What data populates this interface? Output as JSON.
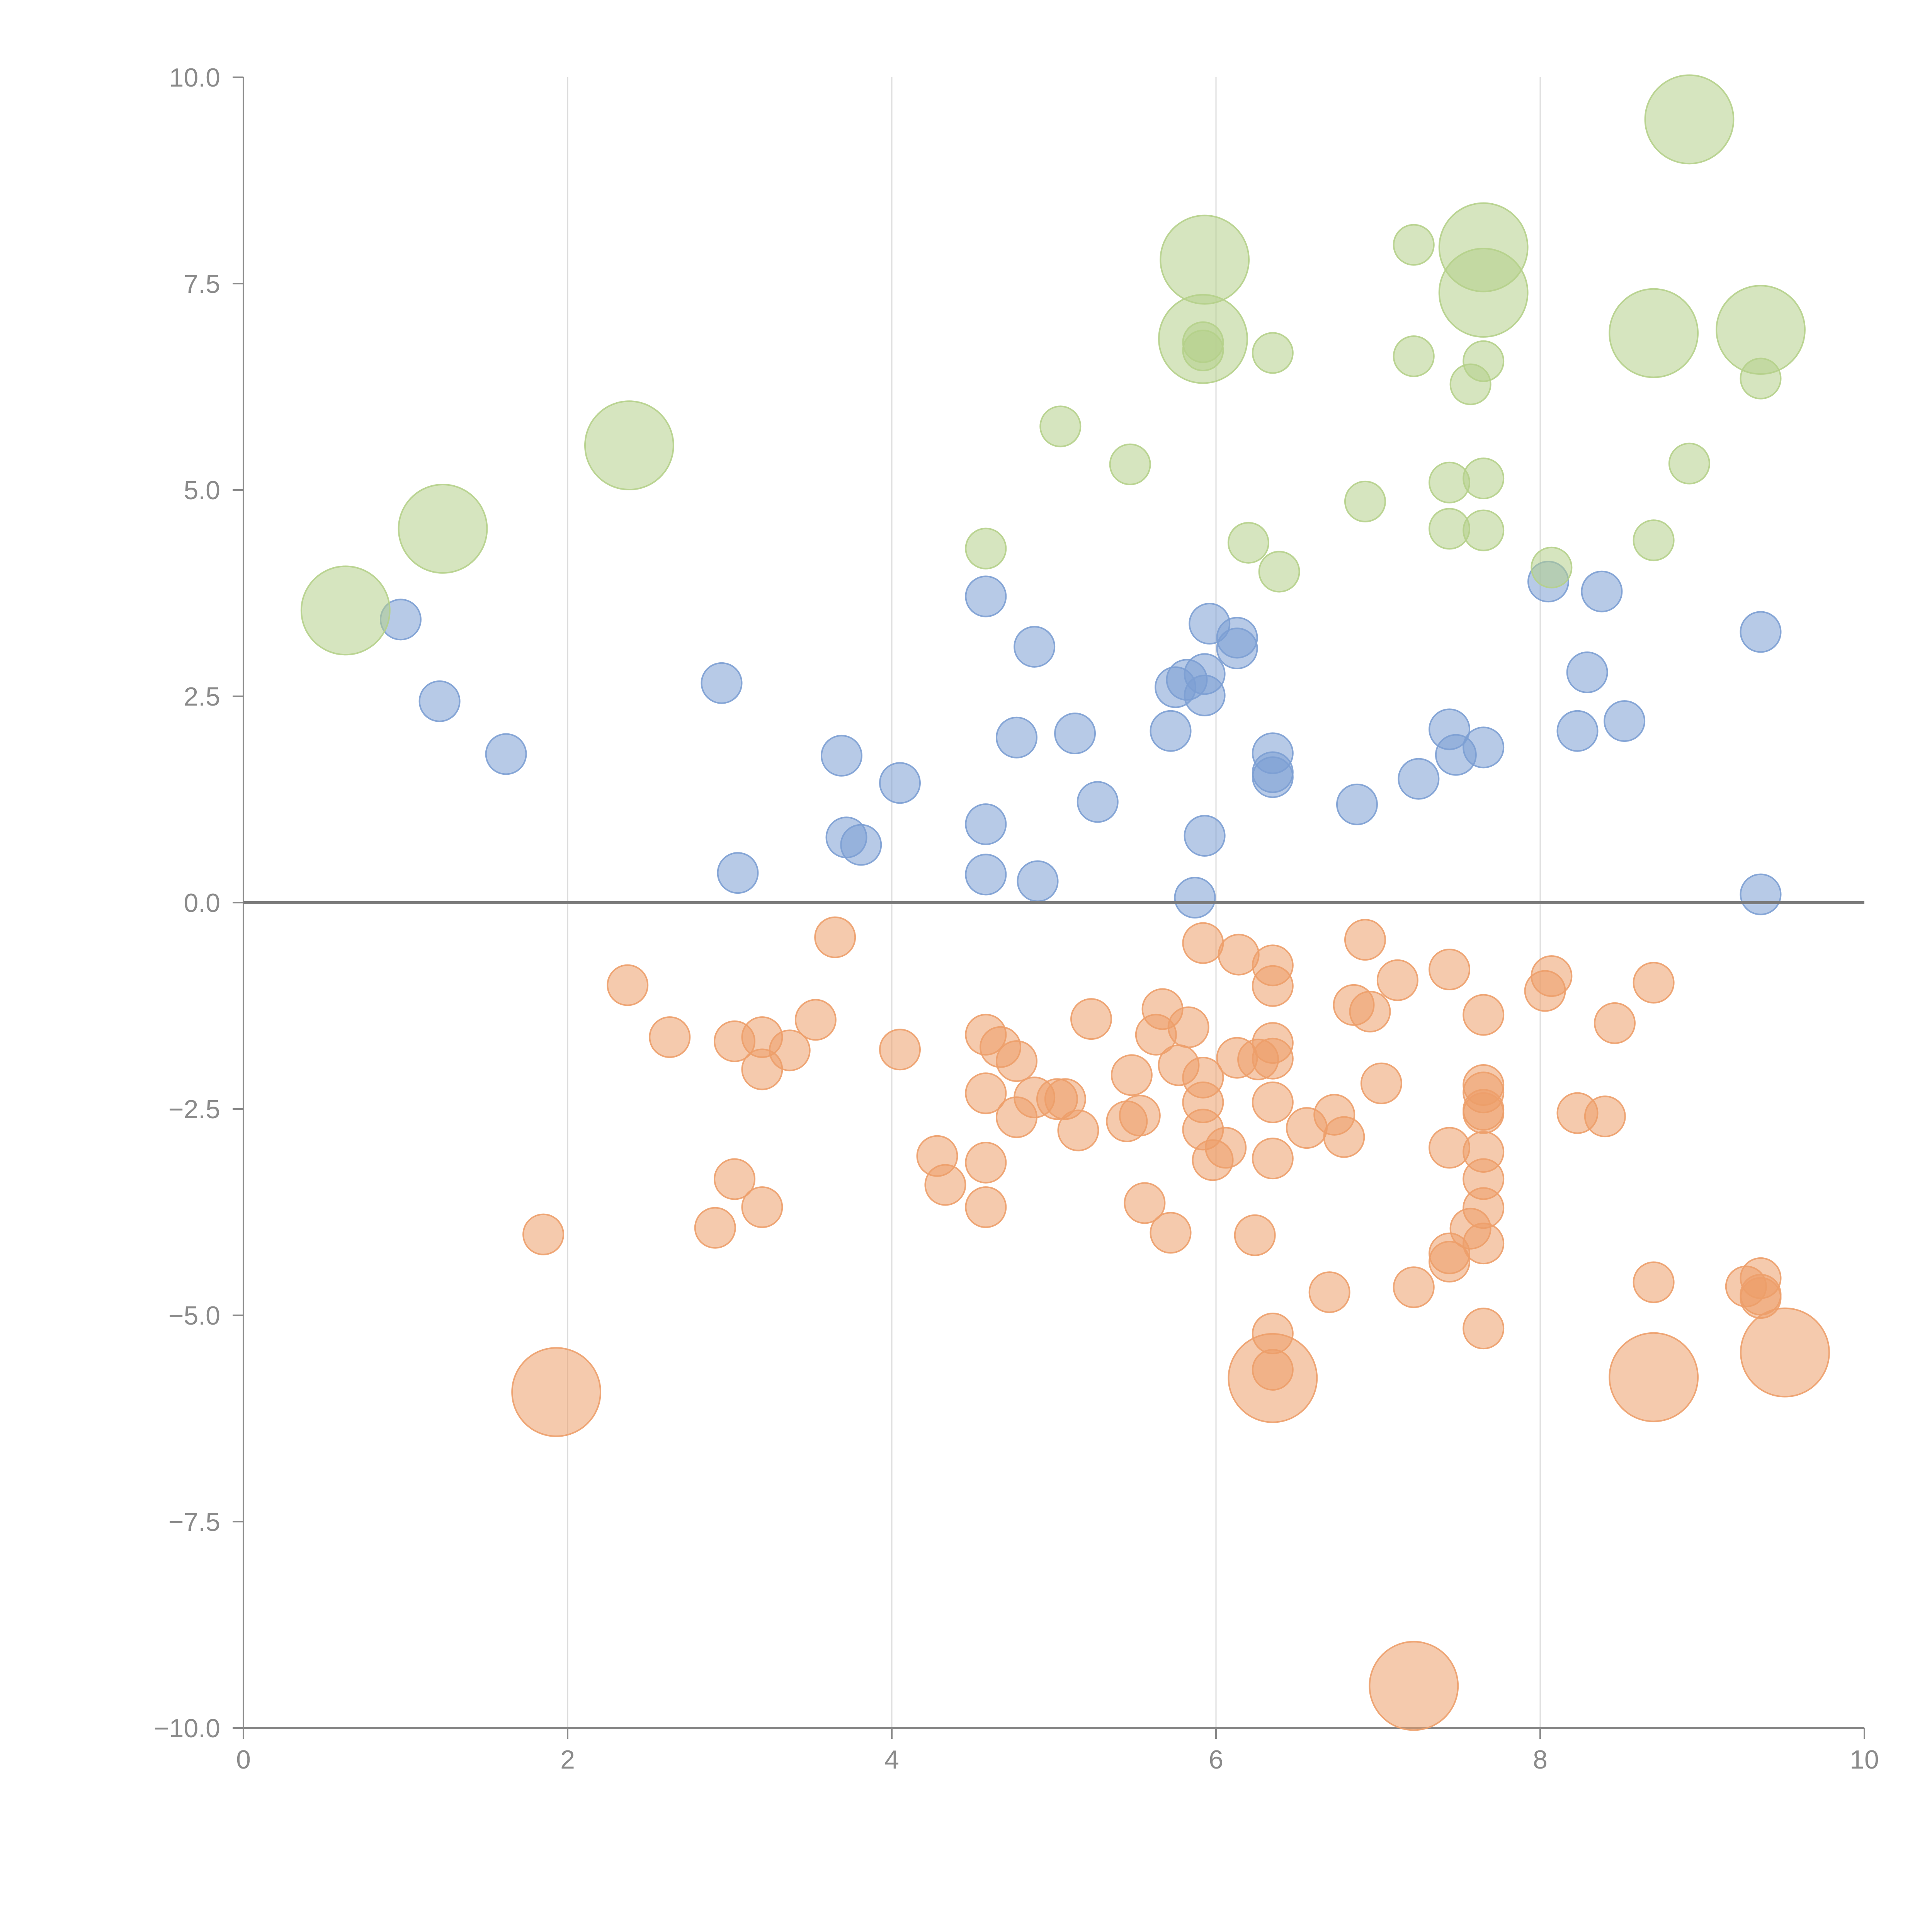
{
  "chart_data": {
    "type": "scatter",
    "title": "",
    "xlabel": "",
    "ylabel": "",
    "xlim": [
      0,
      10
    ],
    "ylim": [
      -10,
      10
    ],
    "x_ticks": [
      0,
      2,
      4,
      6,
      8,
      10
    ],
    "x_tick_labels": [
      "0",
      "2",
      "4",
      "6",
      "8",
      "10"
    ],
    "y_ticks": [
      -10,
      -7.5,
      -5,
      -2.5,
      0,
      2.5,
      5,
      7.5,
      10
    ],
    "y_tick_labels": [
      "−10.0",
      "−7.5",
      "−5.0",
      "−2.5",
      "0.0",
      "2.5",
      "5.0",
      "7.5",
      "10.0"
    ],
    "x_grid": true,
    "y_grid": false,
    "zero_line": true,
    "legend": "none",
    "series": [
      {
        "name": "blue",
        "color": "#7c9fd3",
        "points": [
          [
            0.97,
            3.43,
            1
          ],
          [
            1.21,
            2.44,
            1
          ],
          [
            1.62,
            1.8,
            1
          ],
          [
            2.95,
            2.66,
            1
          ],
          [
            3.05,
            0.36,
            1
          ],
          [
            3.69,
            1.78,
            1
          ],
          [
            3.72,
            0.79,
            1
          ],
          [
            3.81,
            0.7,
            1
          ],
          [
            4.05,
            1.45,
            1
          ],
          [
            4.58,
            3.71,
            1
          ],
          [
            4.58,
            0.95,
            1
          ],
          [
            4.58,
            0.34,
            1
          ],
          [
            4.77,
            2.0,
            1
          ],
          [
            4.88,
            3.1,
            1
          ],
          [
            4.9,
            0.26,
            1
          ],
          [
            5.13,
            2.05,
            1
          ],
          [
            5.27,
            1.22,
            1
          ],
          [
            5.72,
            2.08,
            1
          ],
          [
            5.75,
            2.61,
            1
          ],
          [
            5.82,
            2.7,
            1
          ],
          [
            5.87,
            0.06,
            1
          ],
          [
            5.93,
            2.77,
            1
          ],
          [
            5.93,
            2.51,
            1
          ],
          [
            5.93,
            0.81,
            1
          ],
          [
            5.96,
            3.38,
            1
          ],
          [
            6.13,
            3.21,
            1
          ],
          [
            6.13,
            3.08,
            1
          ],
          [
            6.35,
            1.81,
            1
          ],
          [
            6.35,
            1.58,
            1
          ],
          [
            6.35,
            1.52,
            1
          ],
          [
            6.87,
            1.19,
            1
          ],
          [
            7.25,
            1.5,
            1
          ],
          [
            7.44,
            2.1,
            1
          ],
          [
            7.48,
            1.79,
            1
          ],
          [
            7.65,
            1.88,
            1
          ],
          [
            8.05,
            3.89,
            1
          ],
          [
            8.23,
            2.08,
            1
          ],
          [
            8.29,
            2.79,
            1
          ],
          [
            8.38,
            3.77,
            1
          ],
          [
            8.52,
            2.2,
            1
          ],
          [
            9.36,
            3.28,
            1
          ],
          [
            9.36,
            0.1,
            1
          ]
        ]
      },
      {
        "name": "orange",
        "color": "#ed9f6a",
        "points": [
          [
            1.85,
            -4.02,
            1
          ],
          [
            1.93,
            -5.93,
            2.2
          ],
          [
            2.37,
            -1.0,
            1
          ],
          [
            2.63,
            -1.63,
            1
          ],
          [
            2.91,
            -3.94,
            1
          ],
          [
            3.03,
            -1.68,
            1
          ],
          [
            3.03,
            -3.35,
            1
          ],
          [
            3.2,
            -1.63,
            1
          ],
          [
            3.2,
            -2.02,
            1
          ],
          [
            3.2,
            -3.69,
            1
          ],
          [
            3.37,
            -1.79,
            1
          ],
          [
            3.53,
            -1.42,
            1
          ],
          [
            3.65,
            -0.42,
            1
          ],
          [
            4.05,
            -1.78,
            1
          ],
          [
            4.28,
            -3.07,
            1
          ],
          [
            4.33,
            -3.42,
            1
          ],
          [
            4.58,
            -1.6,
            1
          ],
          [
            4.58,
            -2.31,
            1
          ],
          [
            4.58,
            -3.15,
            1
          ],
          [
            4.58,
            -3.69,
            1
          ],
          [
            4.67,
            -1.75,
            1
          ],
          [
            4.77,
            -1.92,
            1
          ],
          [
            4.77,
            -2.6,
            1
          ],
          [
            4.88,
            -2.36,
            1
          ],
          [
            5.02,
            -2.38,
            1
          ],
          [
            5.07,
            -2.38,
            1
          ],
          [
            5.15,
            -2.76,
            1
          ],
          [
            5.23,
            -1.41,
            1
          ],
          [
            5.45,
            -2.65,
            1
          ],
          [
            5.48,
            -2.09,
            1
          ],
          [
            5.53,
            -2.58,
            1
          ],
          [
            5.56,
            -3.64,
            1
          ],
          [
            5.63,
            -1.6,
            1
          ],
          [
            5.67,
            -1.29,
            1
          ],
          [
            5.72,
            -4.0,
            1
          ],
          [
            5.77,
            -1.97,
            1
          ],
          [
            5.83,
            -1.51,
            1
          ],
          [
            5.92,
            -0.49,
            1
          ],
          [
            5.92,
            -2.12,
            1
          ],
          [
            5.92,
            -2.42,
            1
          ],
          [
            5.92,
            -2.75,
            1
          ],
          [
            5.98,
            -3.12,
            1
          ],
          [
            6.06,
            -2.97,
            1
          ],
          [
            6.13,
            -1.88,
            1
          ],
          [
            6.14,
            -0.63,
            1
          ],
          [
            6.24,
            -4.03,
            1
          ],
          [
            6.26,
            -1.9,
            1
          ],
          [
            6.35,
            -0.76,
            1
          ],
          [
            6.35,
            -1.01,
            1
          ],
          [
            6.35,
            -1.7,
            1
          ],
          [
            6.35,
            -1.89,
            1
          ],
          [
            6.35,
            -2.42,
            1
          ],
          [
            6.35,
            -3.1,
            1
          ],
          [
            6.35,
            -5.22,
            1
          ],
          [
            6.35,
            -5.66,
            1
          ],
          [
            6.35,
            -5.76,
            2.2
          ],
          [
            6.56,
            -2.73,
            1
          ],
          [
            6.7,
            -4.72,
            1
          ],
          [
            6.73,
            -2.57,
            1
          ],
          [
            6.79,
            -2.84,
            1
          ],
          [
            6.85,
            -1.24,
            1
          ],
          [
            6.92,
            -0.45,
            1
          ],
          [
            6.95,
            -1.32,
            1
          ],
          [
            7.02,
            -2.19,
            1
          ],
          [
            7.12,
            -0.94,
            1
          ],
          [
            7.22,
            -4.66,
            1
          ],
          [
            7.22,
            -9.49,
            2.2
          ],
          [
            7.44,
            -0.81,
            1
          ],
          [
            7.44,
            -2.97,
            1
          ],
          [
            7.44,
            -4.25,
            1
          ],
          [
            7.44,
            -4.35,
            1
          ],
          [
            7.57,
            -3.95,
            1
          ],
          [
            7.65,
            -1.36,
            1
          ],
          [
            7.65,
            -2.21,
            1
          ],
          [
            7.65,
            -2.3,
            1
          ],
          [
            7.65,
            -2.51,
            1
          ],
          [
            7.65,
            -2.55,
            1
          ],
          [
            7.65,
            -3.02,
            1
          ],
          [
            7.65,
            -3.35,
            1
          ],
          [
            7.65,
            -3.7,
            1
          ],
          [
            7.65,
            -4.13,
            1
          ],
          [
            7.65,
            -5.16,
            1
          ],
          [
            8.03,
            -1.07,
            1
          ],
          [
            8.07,
            -0.89,
            1
          ],
          [
            8.23,
            -2.55,
            1
          ],
          [
            8.4,
            -2.59,
            1
          ],
          [
            8.46,
            -1.46,
            1
          ],
          [
            8.7,
            -0.97,
            1
          ],
          [
            8.7,
            -4.6,
            1
          ],
          [
            8.7,
            -5.75,
            2.2
          ],
          [
            9.27,
            -4.65,
            1
          ],
          [
            9.36,
            -4.55,
            1
          ],
          [
            9.36,
            -4.75,
            1
          ],
          [
            9.36,
            -4.79,
            1
          ],
          [
            9.51,
            -5.45,
            2.2
          ]
        ]
      },
      {
        "name": "green",
        "color": "#b5d08a",
        "points": [
          [
            0.63,
            3.54,
            2.2
          ],
          [
            1.23,
            4.53,
            2.2
          ],
          [
            2.38,
            5.54,
            2.2
          ],
          [
            4.58,
            4.29,
            1
          ],
          [
            5.04,
            5.77,
            1
          ],
          [
            5.47,
            5.31,
            1
          ],
          [
            5.93,
            7.79,
            2.2
          ],
          [
            5.92,
            6.83,
            2.2
          ],
          [
            5.92,
            6.79,
            1
          ],
          [
            5.92,
            6.69,
            1
          ],
          [
            6.2,
            4.36,
            1
          ],
          [
            6.35,
            6.66,
            1
          ],
          [
            6.39,
            4.01,
            1
          ],
          [
            6.92,
            4.86,
            1
          ],
          [
            7.22,
            7.97,
            1
          ],
          [
            7.22,
            6.62,
            1
          ],
          [
            7.44,
            5.09,
            1
          ],
          [
            7.44,
            4.53,
            1
          ],
          [
            7.57,
            6.28,
            1
          ],
          [
            7.65,
            7.94,
            2.2
          ],
          [
            7.65,
            7.39,
            2.2
          ],
          [
            7.65,
            6.56,
            1
          ],
          [
            7.65,
            5.14,
            1
          ],
          [
            7.65,
            4.51,
            1
          ],
          [
            8.07,
            4.06,
            1
          ],
          [
            8.7,
            4.39,
            1
          ],
          [
            8.7,
            6.9,
            2.2
          ],
          [
            8.92,
            9.49,
            2.2
          ],
          [
            8.92,
            5.32,
            1
          ],
          [
            9.36,
            6.94,
            2.2
          ],
          [
            9.36,
            6.35,
            1
          ]
        ]
      }
    ]
  }
}
